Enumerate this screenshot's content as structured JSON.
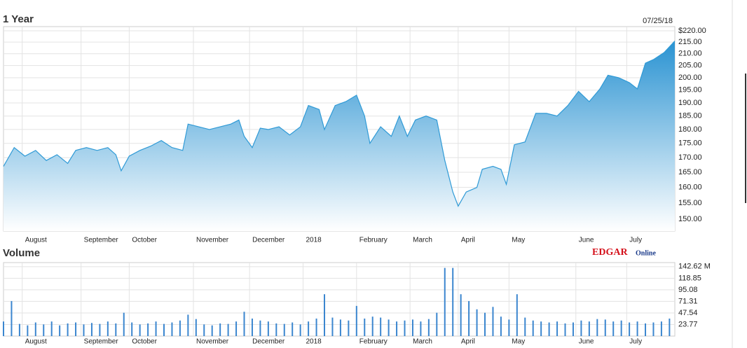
{
  "logo": {
    "brand": "EDGAR",
    "suffix": "Online"
  },
  "chart_data": [
    {
      "type": "area",
      "title": "1 Year",
      "date_label": "07/25/18",
      "color": "#2f9ad6",
      "log": true,
      "grid": true,
      "x": [
        0,
        4,
        8,
        12,
        16,
        20,
        24,
        27,
        31,
        35,
        39,
        42,
        44,
        47,
        51,
        55,
        59,
        63,
        67,
        69,
        73,
        77,
        81,
        85,
        88,
        90,
        93,
        96,
        99,
        103,
        107,
        111,
        114,
        118,
        120,
        124,
        128,
        132,
        135,
        137,
        141,
        145,
        148,
        151,
        154,
        158,
        162,
        165,
        168,
        170,
        173,
        177,
        179,
        183,
        186,
        188,
        191,
        195,
        199,
        203,
        207,
        211,
        215,
        219,
        223,
        226,
        230,
        234,
        237,
        240,
        243,
        247,
        251
      ],
      "values": [
        167,
        173.5,
        170.5,
        172.5,
        169,
        171,
        168,
        172.5,
        173.5,
        172.5,
        173.5,
        171,
        165.5,
        170.5,
        172.5,
        174,
        176,
        173.5,
        172.5,
        182,
        181,
        180,
        181,
        182,
        183.5,
        177.5,
        173.5,
        180.5,
        180,
        181,
        178,
        181,
        189,
        187.5,
        180,
        189,
        190.5,
        193,
        185,
        175,
        181,
        177.5,
        185,
        177.5,
        183.5,
        185,
        183.5,
        169,
        158.5,
        154,
        158.5,
        160,
        166,
        167,
        166,
        161,
        174.5,
        175.5,
        186,
        186,
        185,
        189,
        194.5,
        190.5,
        195.5,
        201,
        200,
        198,
        195.5,
        206,
        207.5,
        210.5,
        215.5
      ],
      "xlim": [
        0,
        251
      ],
      "ylim": [
        146.4,
        221.9
      ],
      "yticks": [
        {
          "value": 220,
          "label": "$220.00"
        },
        {
          "value": 215,
          "label": "215.00"
        },
        {
          "value": 210,
          "label": "210.00"
        },
        {
          "value": 205,
          "label": "205.00"
        },
        {
          "value": 200,
          "label": "200.00"
        },
        {
          "value": 195,
          "label": "195.00"
        },
        {
          "value": 190,
          "label": "190.00"
        },
        {
          "value": 185,
          "label": "185.00"
        },
        {
          "value": 180,
          "label": "180.00"
        },
        {
          "value": 175,
          "label": "175.00"
        },
        {
          "value": 170,
          "label": "170.00"
        },
        {
          "value": 165,
          "label": "165.00"
        },
        {
          "value": 160,
          "label": "160.00"
        },
        {
          "value": 155,
          "label": "155.00"
        },
        {
          "value": 150,
          "label": "150.00"
        }
      ],
      "xticks": [
        {
          "value": 7,
          "label": "August"
        },
        {
          "value": 29,
          "label": "September"
        },
        {
          "value": 47,
          "label": "October"
        },
        {
          "value": 71,
          "label": "November"
        },
        {
          "value": 92,
          "label": "December"
        },
        {
          "value": 112,
          "label": "2018"
        },
        {
          "value": 132,
          "label": "February"
        },
        {
          "value": 152,
          "label": "March"
        },
        {
          "value": 170,
          "label": "April"
        },
        {
          "value": 189,
          "label": "May"
        },
        {
          "value": 214,
          "label": "June"
        },
        {
          "value": 233,
          "label": "July"
        }
      ]
    },
    {
      "type": "bar",
      "title": "Volume",
      "color": "#3b86cf",
      "grid": true,
      "x": [
        0,
        3,
        6,
        9,
        12,
        15,
        18,
        21,
        24,
        27,
        30,
        33,
        36,
        39,
        42,
        45,
        48,
        51,
        54,
        57,
        60,
        63,
        66,
        69,
        72,
        75,
        78,
        81,
        84,
        87,
        90,
        93,
        96,
        99,
        102,
        105,
        108,
        111,
        114,
        117,
        120,
        123,
        126,
        129,
        132,
        135,
        138,
        141,
        144,
        147,
        150,
        153,
        156,
        159,
        162,
        165,
        168,
        171,
        174,
        177,
        180,
        183,
        186,
        189,
        192,
        195,
        198,
        201,
        204,
        207,
        210,
        213,
        216,
        219,
        222,
        225,
        228,
        231,
        234,
        237,
        240,
        243,
        246,
        249
      ],
      "values": [
        30,
        72,
        25,
        22,
        28,
        24,
        30,
        22,
        26,
        28,
        24,
        27,
        25,
        30,
        26,
        48,
        28,
        24,
        26,
        30,
        25,
        28,
        32,
        44,
        35,
        24,
        22,
        26,
        25,
        30,
        50,
        36,
        32,
        30,
        26,
        25,
        28,
        24,
        30,
        36,
        86,
        38,
        34,
        32,
        62,
        36,
        40,
        38,
        34,
        30,
        32,
        34,
        30,
        35,
        48,
        140,
        140,
        86,
        72,
        55,
        48,
        60,
        40,
        34,
        86,
        38,
        32,
        30,
        28,
        30,
        26,
        28,
        32,
        30,
        35,
        34,
        30,
        32,
        28,
        30,
        26,
        28,
        30,
        36
      ],
      "xlim": [
        0,
        251
      ],
      "ylim": [
        0,
        151
      ],
      "yticks": [
        {
          "value": 142.62,
          "label": "142.62 M"
        },
        118.85,
        95.08,
        71.31,
        47.54,
        23.77
      ],
      "xticks": [
        {
          "value": 7,
          "label": "August"
        },
        {
          "value": 29,
          "label": "September"
        },
        {
          "value": 47,
          "label": "October"
        },
        {
          "value": 71,
          "label": "November"
        },
        {
          "value": 92,
          "label": "December"
        },
        {
          "value": 112,
          "label": "2018"
        },
        {
          "value": 132,
          "label": "February"
        },
        {
          "value": 152,
          "label": "March"
        },
        {
          "value": 170,
          "label": "April"
        },
        {
          "value": 189,
          "label": "May"
        },
        {
          "value": 214,
          "label": "June"
        },
        {
          "value": 233,
          "label": "July"
        }
      ]
    }
  ]
}
